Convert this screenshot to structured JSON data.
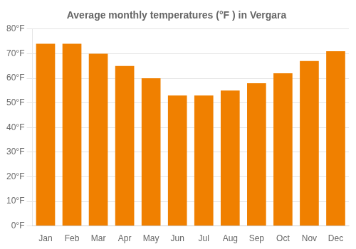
{
  "chart_data": {
    "type": "bar",
    "title": "Average monthly temperatures (°F ) in Vergara",
    "categories": [
      "Jan",
      "Feb",
      "Mar",
      "Apr",
      "May",
      "Jun",
      "Jul",
      "Aug",
      "Sep",
      "Oct",
      "Nov",
      "Dec"
    ],
    "values": [
      74,
      74,
      70,
      65,
      60,
      53,
      53,
      55,
      58,
      62,
      67,
      71
    ],
    "color": "#F08000",
    "ylim": [
      0,
      80
    ],
    "yticks": [
      {
        "value": 0,
        "label": "0°F"
      },
      {
        "value": 10,
        "label": "10°F"
      },
      {
        "value": 20,
        "label": "20°F"
      },
      {
        "value": 30,
        "label": "30°F"
      },
      {
        "value": 40,
        "label": "40°F"
      },
      {
        "value": 50,
        "label": "50°F"
      },
      {
        "value": 60,
        "label": "60°F"
      },
      {
        "value": 70,
        "label": "70°F"
      },
      {
        "value": 80,
        "label": "80°F"
      }
    ],
    "grid": true
  }
}
